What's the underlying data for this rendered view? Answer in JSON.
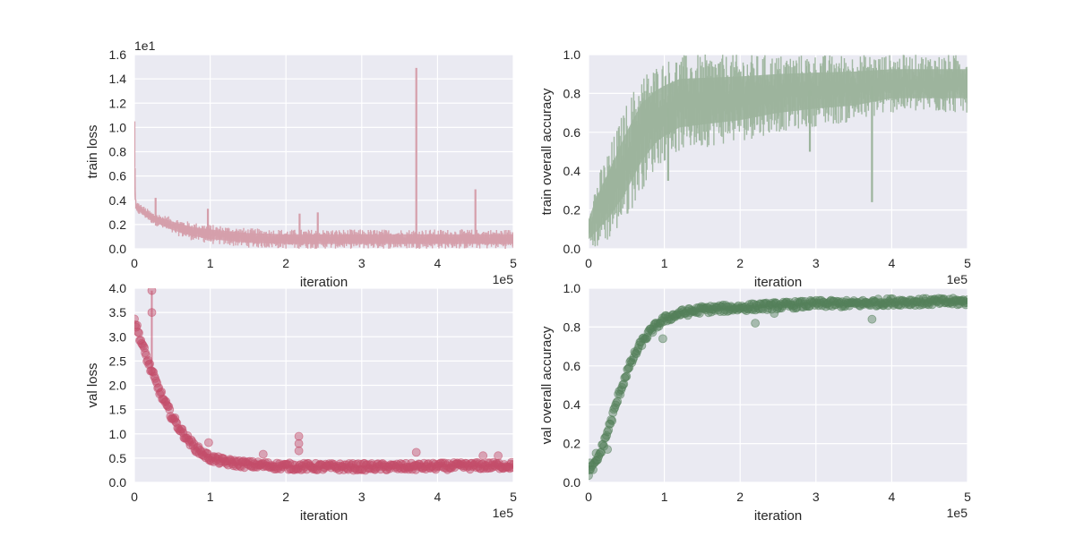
{
  "colors": {
    "background": "#ffffff",
    "plot_bg": "#EAEAF2",
    "grid": "#ffffff",
    "train_loss": "#D59FAB",
    "val_loss": "#C44E6A",
    "train_acc": "#9CB49C",
    "val_acc": "#55815A"
  },
  "chart_data": [
    {
      "type": "line",
      "id": "train-loss",
      "xlabel": "iteration",
      "ylabel": "train loss",
      "x_exponent_label": "1e5",
      "y_exponent_label": "1e1",
      "xlim": [
        0,
        5
      ],
      "ylim": [
        0,
        1.6
      ],
      "x_ticks": [
        0,
        1,
        2,
        3,
        4,
        5
      ],
      "x_tick_labels": [
        "0",
        "1",
        "2",
        "3",
        "4",
        "5"
      ],
      "y_ticks": [
        0,
        0.2,
        0.4,
        0.6,
        0.8,
        1.0,
        1.2,
        1.4,
        1.6
      ],
      "y_tick_labels": [
        "0.0",
        "0.2",
        "0.4",
        "0.6",
        "0.8",
        "1.0",
        "1.2",
        "1.4",
        "1.6"
      ],
      "grid": true,
      "color_key": "train_loss",
      "band": {
        "x": [
          0,
          0.02,
          0.1,
          0.25,
          0.5,
          0.75,
          1.0,
          1.5,
          2.0,
          2.5,
          3.0,
          3.5,
          4.0,
          4.5,
          5.0
        ],
        "upper": [
          1.05,
          0.4,
          0.36,
          0.3,
          0.26,
          0.22,
          0.2,
          0.17,
          0.16,
          0.16,
          0.16,
          0.16,
          0.16,
          0.16,
          0.16
        ],
        "lower": [
          0.3,
          0.29,
          0.27,
          0.2,
          0.12,
          0.07,
          0.04,
          0.01,
          0,
          0,
          0,
          0,
          0,
          0,
          0
        ]
      },
      "spikes": [
        [
          0.0,
          1.05
        ],
        [
          0.28,
          0.42
        ],
        [
          0.97,
          0.33
        ],
        [
          2.18,
          0.29
        ],
        [
          2.42,
          0.3
        ],
        [
          3.72,
          1.49
        ],
        [
          4.5,
          0.49
        ]
      ]
    },
    {
      "type": "line",
      "id": "train-acc",
      "xlabel": "iteration",
      "ylabel": "train overall accuracy",
      "x_exponent_label": "1e5",
      "xlim": [
        0,
        5
      ],
      "ylim": [
        0,
        1.0
      ],
      "x_ticks": [
        0,
        1,
        2,
        3,
        4,
        5
      ],
      "x_tick_labels": [
        "0",
        "1",
        "2",
        "3",
        "4",
        "5"
      ],
      "y_ticks": [
        0,
        0.2,
        0.4,
        0.6,
        0.8,
        1.0
      ],
      "y_tick_labels": [
        "0.0",
        "0.2",
        "0.4",
        "0.6",
        "0.8",
        "1.0"
      ],
      "grid": true,
      "color_key": "train_acc",
      "band": {
        "x": [
          0,
          0.1,
          0.3,
          0.5,
          0.7,
          0.9,
          1.0,
          1.2,
          1.5,
          2.0,
          2.5,
          3.0,
          3.5,
          4.0,
          4.5,
          5.0
        ],
        "upper": [
          0.2,
          0.35,
          0.55,
          0.75,
          0.9,
          0.95,
          0.97,
          1.0,
          1.0,
          1.0,
          1.0,
          1.0,
          1.0,
          1.0,
          1.0,
          1.0
        ],
        "lower": [
          0,
          0,
          0.05,
          0.15,
          0.3,
          0.42,
          0.45,
          0.5,
          0.52,
          0.55,
          0.6,
          0.63,
          0.65,
          0.7,
          0.7,
          0.7
        ]
      },
      "spikes": [
        [
          3.74,
          0.24
        ],
        [
          2.92,
          0.5
        ],
        [
          1.05,
          0.35
        ]
      ]
    },
    {
      "type": "scatter",
      "id": "val-loss",
      "xlabel": "iteration",
      "ylabel": "val loss",
      "x_exponent_label": "1e5",
      "xlim": [
        0,
        5
      ],
      "ylim": [
        0,
        4.0
      ],
      "x_ticks": [
        0,
        1,
        2,
        3,
        4,
        5
      ],
      "x_tick_labels": [
        "0",
        "1",
        "2",
        "3",
        "4",
        "5"
      ],
      "y_ticks": [
        0,
        0.5,
        1.0,
        1.5,
        2.0,
        2.5,
        3.0,
        3.5,
        4.0
      ],
      "y_tick_labels": [
        "0.0",
        "0.5",
        "1.0",
        "1.5",
        "2.0",
        "2.5",
        "3.0",
        "3.5",
        "4.0"
      ],
      "grid": true,
      "color_key": "val_loss",
      "curve": {
        "x": [
          0,
          0.05,
          0.1,
          0.2,
          0.3,
          0.4,
          0.5,
          0.6,
          0.7,
          0.8,
          0.9,
          1.0,
          1.2,
          1.5,
          2.0,
          2.5,
          3.0,
          3.5,
          4.0,
          4.5,
          5.0
        ],
        "y": [
          3.35,
          3.1,
          2.85,
          2.4,
          2.0,
          1.65,
          1.35,
          1.1,
          0.9,
          0.72,
          0.6,
          0.5,
          0.42,
          0.37,
          0.33,
          0.32,
          0.32,
          0.32,
          0.33,
          0.34,
          0.35
        ]
      },
      "outliers": [
        [
          0.23,
          3.95
        ],
        [
          0.23,
          3.5
        ],
        [
          2.17,
          0.95
        ],
        [
          2.17,
          0.8
        ],
        [
          2.17,
          0.65
        ],
        [
          3.72,
          0.62
        ],
        [
          1.7,
          0.58
        ],
        [
          0.98,
          0.82
        ],
        [
          4.6,
          0.55
        ],
        [
          4.8,
          0.55
        ]
      ]
    },
    {
      "type": "scatter",
      "id": "val-acc",
      "xlabel": "iteration",
      "ylabel": "val overall accuracy",
      "x_exponent_label": "1e5",
      "xlim": [
        0,
        5
      ],
      "ylim": [
        0,
        1.0
      ],
      "x_ticks": [
        0,
        1,
        2,
        3,
        4,
        5
      ],
      "x_tick_labels": [
        "0",
        "1",
        "2",
        "3",
        "4",
        "5"
      ],
      "y_ticks": [
        0,
        0.2,
        0.4,
        0.6,
        0.8,
        1.0
      ],
      "y_tick_labels": [
        "0.0",
        "0.2",
        "0.4",
        "0.6",
        "0.8",
        "1.0"
      ],
      "grid": true,
      "color_key": "val_acc",
      "curve": {
        "x": [
          0,
          0.1,
          0.2,
          0.3,
          0.4,
          0.5,
          0.6,
          0.7,
          0.8,
          0.9,
          1.0,
          1.2,
          1.5,
          2.0,
          2.5,
          3.0,
          3.5,
          4.0,
          4.5,
          5.0
        ],
        "y": [
          0.05,
          0.1,
          0.2,
          0.32,
          0.45,
          0.56,
          0.65,
          0.72,
          0.77,
          0.81,
          0.84,
          0.87,
          0.89,
          0.9,
          0.91,
          0.92,
          0.92,
          0.93,
          0.93,
          0.93
        ]
      },
      "outliers": [
        [
          0.02,
          0.1
        ],
        [
          0.1,
          0.15
        ],
        [
          0.25,
          0.17
        ],
        [
          0.98,
          0.74
        ],
        [
          2.2,
          0.82
        ],
        [
          3.74,
          0.84
        ],
        [
          2.45,
          0.87
        ]
      ]
    }
  ]
}
